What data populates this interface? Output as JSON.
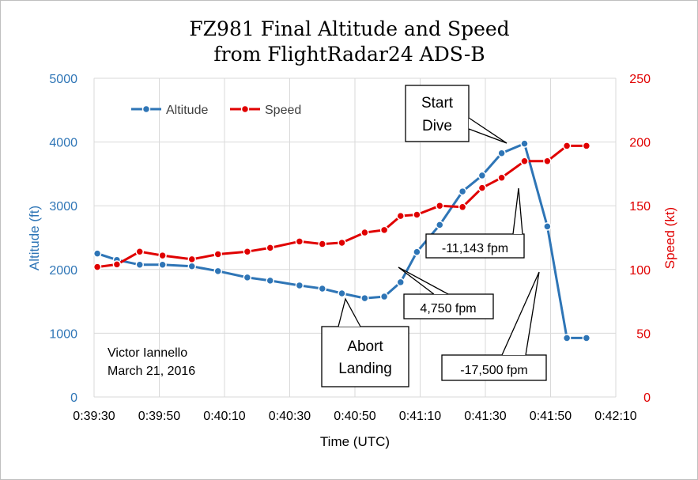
{
  "chart_data": {
    "type": "line",
    "title": [
      "FZ981 Final Altitude and Speed",
      "from FlightRadar24 ADS-B"
    ],
    "xlabel": "Time (UTC)",
    "ylabel_left": "Altitude (ft)",
    "ylabel_right": "Speed (kt)",
    "x_ticks": [
      "0:39:30",
      "0:39:50",
      "0:40:10",
      "0:40:30",
      "0:40:50",
      "0:41:10",
      "0:41:30",
      "0:41:50",
      "0:42:10"
    ],
    "x_range": [
      "0:39:30",
      "0:42:10"
    ],
    "y_left_range": [
      0,
      5000
    ],
    "y_left_ticks": [
      "0",
      "1000",
      "2000",
      "3000",
      "4000",
      "5000"
    ],
    "y_right_range": [
      0,
      250
    ],
    "y_right_ticks": [
      "0",
      "50",
      "100",
      "150",
      "200",
      "250"
    ],
    "grid": true,
    "legend_position": "top-left",
    "series": [
      {
        "name": "Altitude",
        "axis": "left",
        "color": "#2e75b6",
        "x": [
          "0:39:31",
          "0:39:37",
          "0:39:44",
          "0:39:51",
          "0:40:00",
          "0:40:08",
          "0:40:17",
          "0:40:24",
          "0:40:33",
          "0:40:40",
          "0:40:46",
          "0:40:53",
          "0:40:59",
          "0:41:04",
          "0:41:09",
          "0:41:16",
          "0:41:23",
          "0:41:29",
          "0:41:35",
          "0:41:42",
          "0:41:49",
          "0:41:55",
          "0:42:01"
        ],
        "values": [
          2250,
          2150,
          2075,
          2075,
          2050,
          1975,
          1875,
          1825,
          1750,
          1700,
          1625,
          1550,
          1575,
          1800,
          2275,
          2700,
          3225,
          3475,
          3825,
          3975,
          2675,
          925,
          925
        ]
      },
      {
        "name": "Speed",
        "axis": "right",
        "color": "#e00000",
        "x": [
          "0:39:31",
          "0:39:37",
          "0:39:44",
          "0:39:51",
          "0:40:00",
          "0:40:08",
          "0:40:17",
          "0:40:24",
          "0:40:33",
          "0:40:40",
          "0:40:46",
          "0:40:53",
          "0:40:59",
          "0:41:04",
          "0:41:09",
          "0:41:16",
          "0:41:23",
          "0:41:29",
          "0:41:35",
          "0:41:42",
          "0:41:49",
          "0:41:55",
          "0:42:01"
        ],
        "values": [
          102,
          104,
          114,
          111,
          108,
          112,
          114,
          117,
          122,
          120,
          121,
          129,
          131,
          142,
          143,
          150,
          149,
          164,
          172,
          185,
          185,
          197,
          197
        ]
      }
    ],
    "annotations": [
      {
        "text": [
          "Start",
          "Dive"
        ]
      },
      {
        "text": [
          "-11,143 fpm"
        ]
      },
      {
        "text": [
          "4,750 fpm"
        ]
      },
      {
        "text": [
          "Abort",
          "Landing"
        ]
      },
      {
        "text": [
          "-17,500 fpm"
        ]
      }
    ],
    "note": [
      "Victor Iannello",
      "March 21, 2016"
    ]
  }
}
